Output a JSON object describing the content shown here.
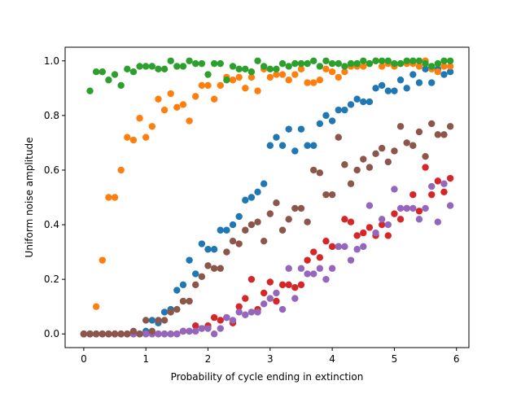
{
  "chart_data": {
    "type": "scatter",
    "title": "",
    "xlabel": "Probability of cycle ending in extinction",
    "ylabel": "Uniform noise amplitude",
    "xlim": [
      -0.3,
      6.2
    ],
    "ylim": [
      -0.05,
      1.05
    ],
    "xticks": [
      0,
      1,
      2,
      3,
      4,
      5,
      6
    ],
    "xtick_labels": [
      "0",
      "1",
      "2",
      "3",
      "4",
      "5",
      "6"
    ],
    "yticks": [
      0.0,
      0.2,
      0.4,
      0.6,
      0.8,
      1.0
    ],
    "ytick_labels": [
      "0.0",
      "0.2",
      "0.4",
      "0.6",
      "0.8",
      "1.0"
    ],
    "grid": false,
    "legend": "none",
    "x": [
      0.0,
      0.1,
      0.2,
      0.3,
      0.4,
      0.5,
      0.6,
      0.7,
      0.8,
      0.9,
      1.0,
      1.1,
      1.2,
      1.3,
      1.4,
      1.5,
      1.6,
      1.7,
      1.8,
      1.9,
      2.0,
      2.1,
      2.2,
      2.3,
      2.4,
      2.5,
      2.6,
      2.7,
      2.8,
      2.9,
      3.0,
      3.1,
      3.2,
      3.3,
      3.4,
      3.5,
      3.6,
      3.7,
      3.8,
      3.9,
      4.0,
      4.1,
      4.2,
      4.3,
      4.4,
      4.5,
      4.6,
      4.7,
      4.8,
      4.9,
      5.0,
      5.1,
      5.2,
      5.3,
      5.4,
      5.5,
      5.6,
      5.7,
      5.8,
      5.9
    ],
    "series": [
      {
        "color": "#1f77b4",
        "values": [
          0.0,
          0.0,
          0.0,
          0.0,
          0.0,
          0.0,
          0.0,
          0.0,
          0.0,
          0.0,
          0.01,
          0.05,
          0.04,
          0.08,
          0.09,
          0.16,
          0.18,
          0.27,
          0.22,
          0.33,
          0.31,
          0.31,
          0.38,
          0.38,
          0.4,
          0.43,
          0.49,
          0.5,
          0.52,
          0.55,
          0.69,
          0.72,
          0.69,
          0.75,
          0.67,
          0.75,
          0.69,
          0.69,
          0.77,
          0.8,
          0.78,
          0.82,
          0.82,
          0.84,
          0.86,
          0.85,
          0.85,
          0.9,
          0.91,
          0.89,
          0.89,
          0.93,
          0.9,
          0.95,
          0.92,
          0.97,
          0.92,
          0.97,
          0.95,
          0.96
        ]
      },
      {
        "color": "#ff7f0e",
        "values": [
          0.0,
          0.0,
          0.1,
          0.27,
          0.5,
          0.5,
          0.6,
          0.72,
          0.71,
          0.79,
          0.72,
          0.76,
          0.86,
          0.82,
          0.88,
          0.83,
          0.84,
          0.78,
          0.87,
          0.91,
          0.91,
          0.86,
          0.91,
          0.94,
          0.93,
          0.94,
          0.9,
          0.94,
          0.89,
          0.97,
          0.94,
          0.95,
          0.95,
          0.93,
          0.95,
          0.97,
          0.92,
          0.92,
          0.93,
          0.97,
          0.96,
          0.94,
          0.96,
          0.98,
          0.98,
          0.98,
          0.99,
          1.0,
          0.98,
          0.99,
          0.98,
          0.99,
          0.99,
          0.99,
          0.98,
          1.0,
          0.97,
          0.96,
          0.98,
          0.98
        ]
      },
      {
        "color": "#2ca02c",
        "values": [
          0.0,
          0.89,
          0.96,
          0.96,
          0.93,
          0.95,
          0.91,
          0.97,
          0.96,
          0.98,
          0.98,
          0.98,
          0.97,
          0.97,
          1.0,
          0.98,
          0.98,
          1.0,
          0.99,
          0.99,
          0.95,
          0.99,
          0.99,
          0.93,
          0.98,
          0.97,
          0.97,
          0.96,
          1.0,
          0.98,
          0.97,
          0.97,
          0.99,
          0.98,
          0.99,
          0.99,
          0.99,
          1.0,
          0.98,
          1.0,
          0.99,
          0.99,
          0.98,
          0.99,
          0.99,
          1.0,
          0.99,
          1.0,
          1.0,
          1.0,
          0.99,
          0.99,
          1.0,
          1.0,
          1.0,
          0.99,
          0.98,
          0.99,
          1.0,
          1.0
        ]
      },
      {
        "color": "#d62728",
        "values": [
          0.0,
          0.0,
          0.0,
          0.0,
          0.0,
          0.0,
          0.0,
          0.0,
          0.0,
          0.0,
          0.0,
          0.0,
          0.0,
          0.0,
          0.0,
          0.0,
          0.01,
          0.01,
          0.03,
          0.02,
          0.03,
          0.06,
          0.05,
          0.06,
          0.04,
          0.1,
          0.13,
          0.2,
          0.09,
          0.15,
          0.19,
          0.12,
          0.18,
          0.18,
          0.17,
          0.18,
          0.27,
          0.3,
          0.28,
          0.34,
          0.32,
          0.32,
          0.42,
          0.41,
          0.36,
          0.37,
          0.39,
          0.36,
          0.4,
          0.36,
          0.44,
          0.42,
          0.46,
          0.51,
          0.45,
          0.61,
          0.51,
          0.56,
          0.52,
          0.57
        ]
      },
      {
        "color": "#9467bd",
        "values": [
          0.0,
          0.0,
          0.0,
          0.0,
          0.0,
          0.0,
          0.0,
          0.0,
          0.0,
          0.0,
          0.0,
          0.0,
          0.0,
          0.0,
          0.0,
          0.0,
          0.01,
          0.01,
          0.01,
          0.02,
          0.02,
          0.0,
          0.02,
          0.06,
          0.05,
          0.08,
          0.07,
          0.08,
          0.08,
          0.11,
          0.13,
          0.15,
          0.09,
          0.24,
          0.13,
          0.24,
          0.22,
          0.22,
          0.24,
          0.2,
          0.24,
          0.32,
          0.32,
          0.27,
          0.31,
          0.32,
          0.47,
          0.37,
          0.42,
          0.4,
          0.53,
          0.46,
          0.46,
          0.46,
          0.42,
          0.46,
          0.54,
          0.41,
          0.55,
          0.47
        ]
      },
      {
        "color": "#8c564b",
        "values": [
          0.0,
          0.0,
          0.0,
          0.0,
          0.0,
          0.0,
          0.0,
          0.0,
          0.01,
          0.0,
          0.05,
          0.01,
          0.05,
          0.05,
          0.08,
          0.09,
          0.12,
          0.12,
          0.18,
          0.21,
          0.25,
          0.24,
          0.24,
          0.3,
          0.34,
          0.33,
          0.38,
          0.4,
          0.41,
          0.34,
          0.44,
          0.48,
          0.38,
          0.42,
          0.46,
          0.46,
          0.41,
          0.6,
          0.59,
          0.51,
          0.51,
          0.72,
          0.62,
          0.55,
          0.6,
          0.64,
          0.61,
          0.66,
          0.68,
          0.63,
          0.67,
          0.76,
          0.7,
          0.69,
          0.74,
          0.65,
          0.77,
          0.73,
          0.73,
          0.76
        ]
      }
    ]
  }
}
